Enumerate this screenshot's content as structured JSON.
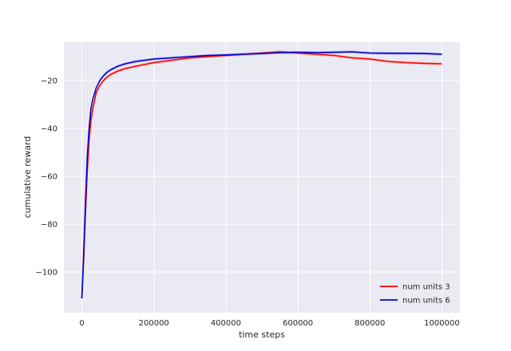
{
  "chart_data": {
    "type": "line",
    "title": "",
    "xlabel": "time steps",
    "ylabel": "cumulative reward",
    "xlim": [
      -50000,
      1050000
    ],
    "ylim": [
      -117,
      -4
    ],
    "xticks": [
      0,
      200000,
      400000,
      600000,
      800000,
      1000000
    ],
    "xtick_labels": [
      "0",
      "200000",
      "400000",
      "600000",
      "800000",
      "1000000"
    ],
    "yticks": [
      -20,
      -40,
      -60,
      -80,
      -100
    ],
    "ytick_labels": [
      "−20",
      "−40",
      "−60",
      "−80",
      "−100"
    ],
    "grid": true,
    "legend_position": "lower-right",
    "series": [
      {
        "name": "num units 3",
        "color": "#ff0000",
        "band_color": "#ff8a8a",
        "x": [
          0,
          5000,
          10000,
          15000,
          20000,
          25000,
          30000,
          40000,
          50000,
          60000,
          70000,
          80000,
          100000,
          120000,
          150000,
          200000,
          250000,
          300000,
          350000,
          400000,
          450000,
          500000,
          550000,
          600000,
          650000,
          700000,
          750000,
          800000,
          850000,
          900000,
          950000,
          1000000
        ],
        "values": [
          -111,
          -95,
          -75,
          -58,
          -45,
          -37,
          -32,
          -25,
          -22,
          -20,
          -18.5,
          -17.5,
          -16,
          -15,
          -14,
          -12.5,
          -11.5,
          -10.5,
          -10,
          -9.5,
          -9,
          -8.5,
          -8,
          -8.5,
          -9,
          -9.5,
          -10.5,
          -11,
          -12,
          -12.5,
          -12.8,
          -13
        ]
      },
      {
        "name": "num units 6",
        "color": "#0000cd",
        "band_color": "#8a8aff",
        "x": [
          0,
          5000,
          10000,
          15000,
          20000,
          25000,
          30000,
          40000,
          50000,
          60000,
          70000,
          80000,
          100000,
          120000,
          150000,
          200000,
          250000,
          300000,
          350000,
          400000,
          450000,
          500000,
          550000,
          600000,
          650000,
          700000,
          750000,
          800000,
          850000,
          900000,
          950000,
          1000000
        ],
        "values": [
          -111,
          -92,
          -70,
          -52,
          -40,
          -32,
          -28,
          -23,
          -20,
          -18,
          -16.5,
          -15.5,
          -14,
          -13,
          -12,
          -11,
          -10.5,
          -10,
          -9.5,
          -9.3,
          -9,
          -8.7,
          -8.3,
          -8.2,
          -8.3,
          -8.2,
          -8,
          -8.5,
          -8.6,
          -8.6,
          -8.7,
          -9
        ]
      }
    ]
  }
}
